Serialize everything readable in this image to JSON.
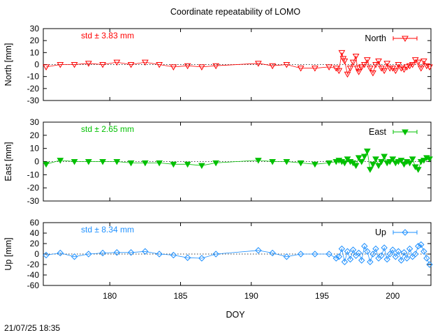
{
  "title": "Coordinate repeatability of LOMO",
  "timestamp": "21/07/25 18:35",
  "xlabel": "DOY",
  "x_ticks": [
    "180",
    "185",
    "190",
    "195",
    "200"
  ],
  "chart_data": [
    {
      "type": "scatter",
      "ylabel": "North [mm]",
      "legend": "North",
      "std_label": "std ± 3.83 mm",
      "color": "#ff0000",
      "marker": "triangle-down-open",
      "legend_position": "top-right",
      "xlim": [
        175.3,
        202.7
      ],
      "ylim": [
        -30,
        30
      ],
      "yticks": [
        -30,
        -20,
        -10,
        0,
        10,
        20,
        30
      ],
      "zero_line": "dotted",
      "x": [
        175.5,
        176.5,
        177.5,
        178.5,
        179.5,
        180.5,
        181.5,
        182.5,
        183.5,
        184.5,
        185.5,
        186.5,
        187.5,
        190.5,
        191.5,
        192.5,
        193.5,
        194.5,
        195.5,
        196.0,
        196.2,
        196.4,
        196.5,
        196.6,
        196.8,
        197.0,
        197.2,
        197.4,
        197.5,
        197.6,
        197.8,
        198.0,
        198.2,
        198.4,
        198.6,
        198.8,
        199.0,
        199.2,
        199.4,
        199.6,
        199.8,
        200.0,
        200.2,
        200.4,
        200.6,
        200.8,
        201.0,
        201.2,
        201.4,
        201.6,
        201.8,
        202.0,
        202.2,
        202.4,
        202.6
      ],
      "y": [
        -2,
        0,
        0,
        1,
        0,
        2,
        0,
        2,
        0,
        -2,
        -1,
        -2,
        -1,
        1,
        -1,
        0,
        -3,
        -3,
        -2,
        -3,
        -5,
        10,
        5,
        3,
        -8,
        -3,
        2,
        7,
        -3,
        -6,
        -2,
        0,
        4,
        -3,
        -7,
        0,
        3,
        -3,
        -5,
        1,
        -3,
        -3,
        -5,
        0,
        -3,
        -4,
        -2,
        -1,
        0,
        4,
        2,
        -3,
        3,
        -1,
        -2
      ]
    },
    {
      "type": "scatter",
      "ylabel": "East [mm]",
      "legend": "East",
      "std_label": "std ± 2.65 mm",
      "color": "#00c000",
      "marker": "triangle-down-filled",
      "legend_position": "top-right",
      "xlim": [
        175.3,
        202.7
      ],
      "ylim": [
        -30,
        30
      ],
      "yticks": [
        -30,
        -20,
        -10,
        0,
        10,
        20,
        30
      ],
      "zero_line": "dotted",
      "x": [
        175.5,
        176.5,
        177.5,
        178.5,
        179.5,
        180.5,
        181.5,
        182.5,
        183.5,
        184.5,
        185.5,
        186.5,
        187.5,
        190.5,
        191.5,
        192.5,
        193.5,
        194.5,
        195.5,
        196.0,
        196.2,
        196.4,
        196.6,
        196.8,
        197.0,
        197.2,
        197.4,
        197.6,
        197.8,
        198.0,
        198.2,
        198.4,
        198.6,
        198.8,
        199.0,
        199.2,
        199.4,
        199.6,
        199.8,
        200.0,
        200.2,
        200.4,
        200.6,
        200.8,
        201.0,
        201.2,
        201.4,
        201.6,
        201.8,
        202.0,
        202.2,
        202.4,
        202.6
      ],
      "y": [
        -2,
        1,
        0,
        0,
        0,
        0,
        -1,
        -1,
        -1,
        -2,
        -2,
        -3,
        -1,
        1,
        0,
        0,
        -1,
        -2,
        -1,
        0,
        1,
        0,
        -1,
        2,
        0,
        -1,
        -3,
        3,
        0,
        4,
        8,
        -6,
        -2,
        2,
        -3,
        0,
        4,
        -1,
        0,
        2,
        -1,
        0,
        1,
        -2,
        0,
        -1,
        2,
        -4,
        -6,
        0,
        1,
        3,
        2
      ]
    },
    {
      "type": "scatter",
      "ylabel": "Up [mm]",
      "legend": "Up",
      "std_label": "std ± 8.34 mm",
      "color": "#1e90ff",
      "marker": "diamond-open",
      "legend_position": "top-right",
      "xlim": [
        175.3,
        202.7
      ],
      "ylim": [
        -60,
        60
      ],
      "yticks": [
        -60,
        -40,
        -20,
        0,
        20,
        40,
        60
      ],
      "zero_line": "dotted",
      "x": [
        175.5,
        176.5,
        177.5,
        178.5,
        179.5,
        180.5,
        181.5,
        182.5,
        183.5,
        184.5,
        185.5,
        186.5,
        187.5,
        190.5,
        191.5,
        192.5,
        193.5,
        194.5,
        195.5,
        196.0,
        196.2,
        196.4,
        196.6,
        196.8,
        197.0,
        197.2,
        197.4,
        197.6,
        197.8,
        198.0,
        198.2,
        198.4,
        198.6,
        198.8,
        199.0,
        199.2,
        199.4,
        199.6,
        199.8,
        200.0,
        200.2,
        200.4,
        200.6,
        200.8,
        201.0,
        201.2,
        201.4,
        201.6,
        201.8,
        202.0,
        202.2,
        202.4,
        202.6
      ],
      "y": [
        -2,
        2,
        -5,
        0,
        2,
        3,
        3,
        5,
        0,
        -2,
        -7,
        -8,
        0,
        7,
        2,
        -5,
        0,
        0,
        0,
        -8,
        -5,
        10,
        -15,
        5,
        -10,
        8,
        -3,
        2,
        -12,
        15,
        5,
        -15,
        0,
        10,
        -8,
        -3,
        12,
        -10,
        0,
        8,
        -5,
        5,
        -12,
        3,
        -8,
        10,
        -5,
        0,
        15,
        18,
        5,
        -8,
        -20
      ]
    }
  ]
}
